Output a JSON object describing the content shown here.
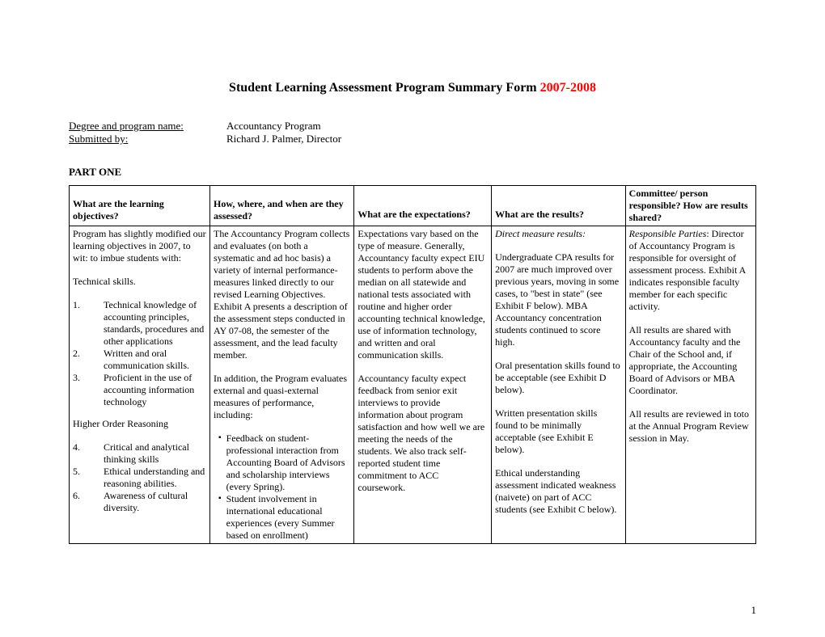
{
  "title": {
    "main": "Student Learning Assessment Program Summary Form ",
    "year": "2007-2008",
    "year_color": "#ff0000"
  },
  "meta": {
    "degree_label": "Degree and program name",
    "degree_value": "Accountancy Program",
    "submitted_label": "Submitted by",
    "submitted_value": "Richard J. Palmer, Director"
  },
  "part_heading": "PART ONE",
  "table": {
    "headers": {
      "c1": "What are the learning objectives?",
      "c2": "How, where, and when are they assessed?",
      "c3": "What are the expectations?",
      "c4": "What are the results?",
      "c5": "Committee/ person responsible?  How are results shared?"
    },
    "col1": {
      "intro": "Program has slightly modified our learning objectives in 2007, to wit: to imbue students with:",
      "tech_heading": "Technical skills.",
      "items1": [
        "Technical knowledge of accounting principles, standards, procedures and other applications",
        "Written and oral communication skills.",
        "Proficient in the use of accounting information technology"
      ],
      "higher_heading": "Higher Order Reasoning",
      "items2": [
        "Critical and analytical thinking skills",
        "Ethical understanding and reasoning abilities.",
        "Awareness of cultural diversity."
      ]
    },
    "col2": {
      "p1": "The Accountancy Program collects and evaluates (on both a systematic and ad hoc basis) a variety of internal performance-measures linked directly to our revised Learning Objectives. Exhibit A presents a description of the assessment steps conducted in AY 07-08, the semester of the assessment, and the lead faculty member.",
      "p2": "In addition, the Program evaluates external and quasi-external measures of performance, including:",
      "bullets": [
        "Feedback on student-professional interaction from Accounting Board of Advisors and scholarship interviews (every Spring).",
        "Student involvement in international educational experiences (every Summer based on enrollment)"
      ]
    },
    "col3": {
      "p1": "Expectations vary based on the type of measure.  Generally, Accountancy faculty expect EIU students to perform above the median on all statewide and national tests associated with routine and higher order accounting technical knowledge, use of information technology, and written and oral communication skills.",
      "p2": "Accountancy faculty expect feedback from senior exit interviews to provide information about program satisfaction and how well we are meeting the needs of the students.  We also track self-reported student time commitment to ACC coursework."
    },
    "col4": {
      "heading": "Direct measure results:",
      "p1": "Undergraduate CPA results for 2007 are much improved over previous years, moving in some cases, to \"best in state\" (see Exhibit F below). MBA Accountancy concentration students continued to score high.",
      "p2": "Oral presentation skills found to be acceptable (see Exhibit D below).",
      "p3": "Written presentation skills found to be minimally acceptable (see Exhibit E below).",
      "p4": "Ethical understanding assessment indicated weakness (naivete) on part of ACC students (see Exhibit C below)."
    },
    "col5": {
      "heading": "Responsible Parties",
      "p1": "Director of Accountancy Program is responsible for oversight of assessment process.  Exhibit A indicates responsible faculty member for each specific activity.",
      "p2": "All results are shared with Accountancy faculty and the Chair of the School and, if appropriate, the Accounting Board of Advisors or MBA Coordinator.",
      "p3": "All results are reviewed in toto at the Annual Program Review session in May."
    }
  },
  "page_number": "1"
}
